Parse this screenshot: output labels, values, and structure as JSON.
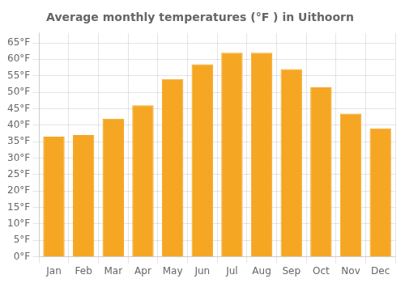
{
  "chart_data": {
    "type": "bar",
    "title": "Average monthly temperatures (°F ) in Uithoorn",
    "categories": [
      "Jan",
      "Feb",
      "Mar",
      "Apr",
      "May",
      "Jun",
      "Jul",
      "Aug",
      "Sep",
      "Oct",
      "Nov",
      "Dec"
    ],
    "values": [
      36.5,
      37.0,
      42.0,
      46.0,
      54.0,
      58.5,
      62.0,
      62.0,
      57.0,
      51.5,
      43.5,
      39.0
    ],
    "color": "#F5A623",
    "ylim": [
      0,
      68
    ],
    "yticks": [
      {
        "value": 0,
        "label": "0°F"
      },
      {
        "value": 5,
        "label": "5°F"
      },
      {
        "value": 10,
        "label": "10°F"
      },
      {
        "value": 15,
        "label": "15°F"
      },
      {
        "value": 20,
        "label": "20°F"
      },
      {
        "value": 25,
        "label": "25°F"
      },
      {
        "value": 30,
        "label": "30°F"
      },
      {
        "value": 35,
        "label": "35°F"
      },
      {
        "value": 40,
        "label": "40°F"
      },
      {
        "value": 45,
        "label": "45°F"
      },
      {
        "value": 50,
        "label": "50°F"
      },
      {
        "value": 55,
        "label": "55°F"
      },
      {
        "value": 60,
        "label": "60°F"
      },
      {
        "value": 65,
        "label": "65°F"
      }
    ],
    "grid": true
  }
}
